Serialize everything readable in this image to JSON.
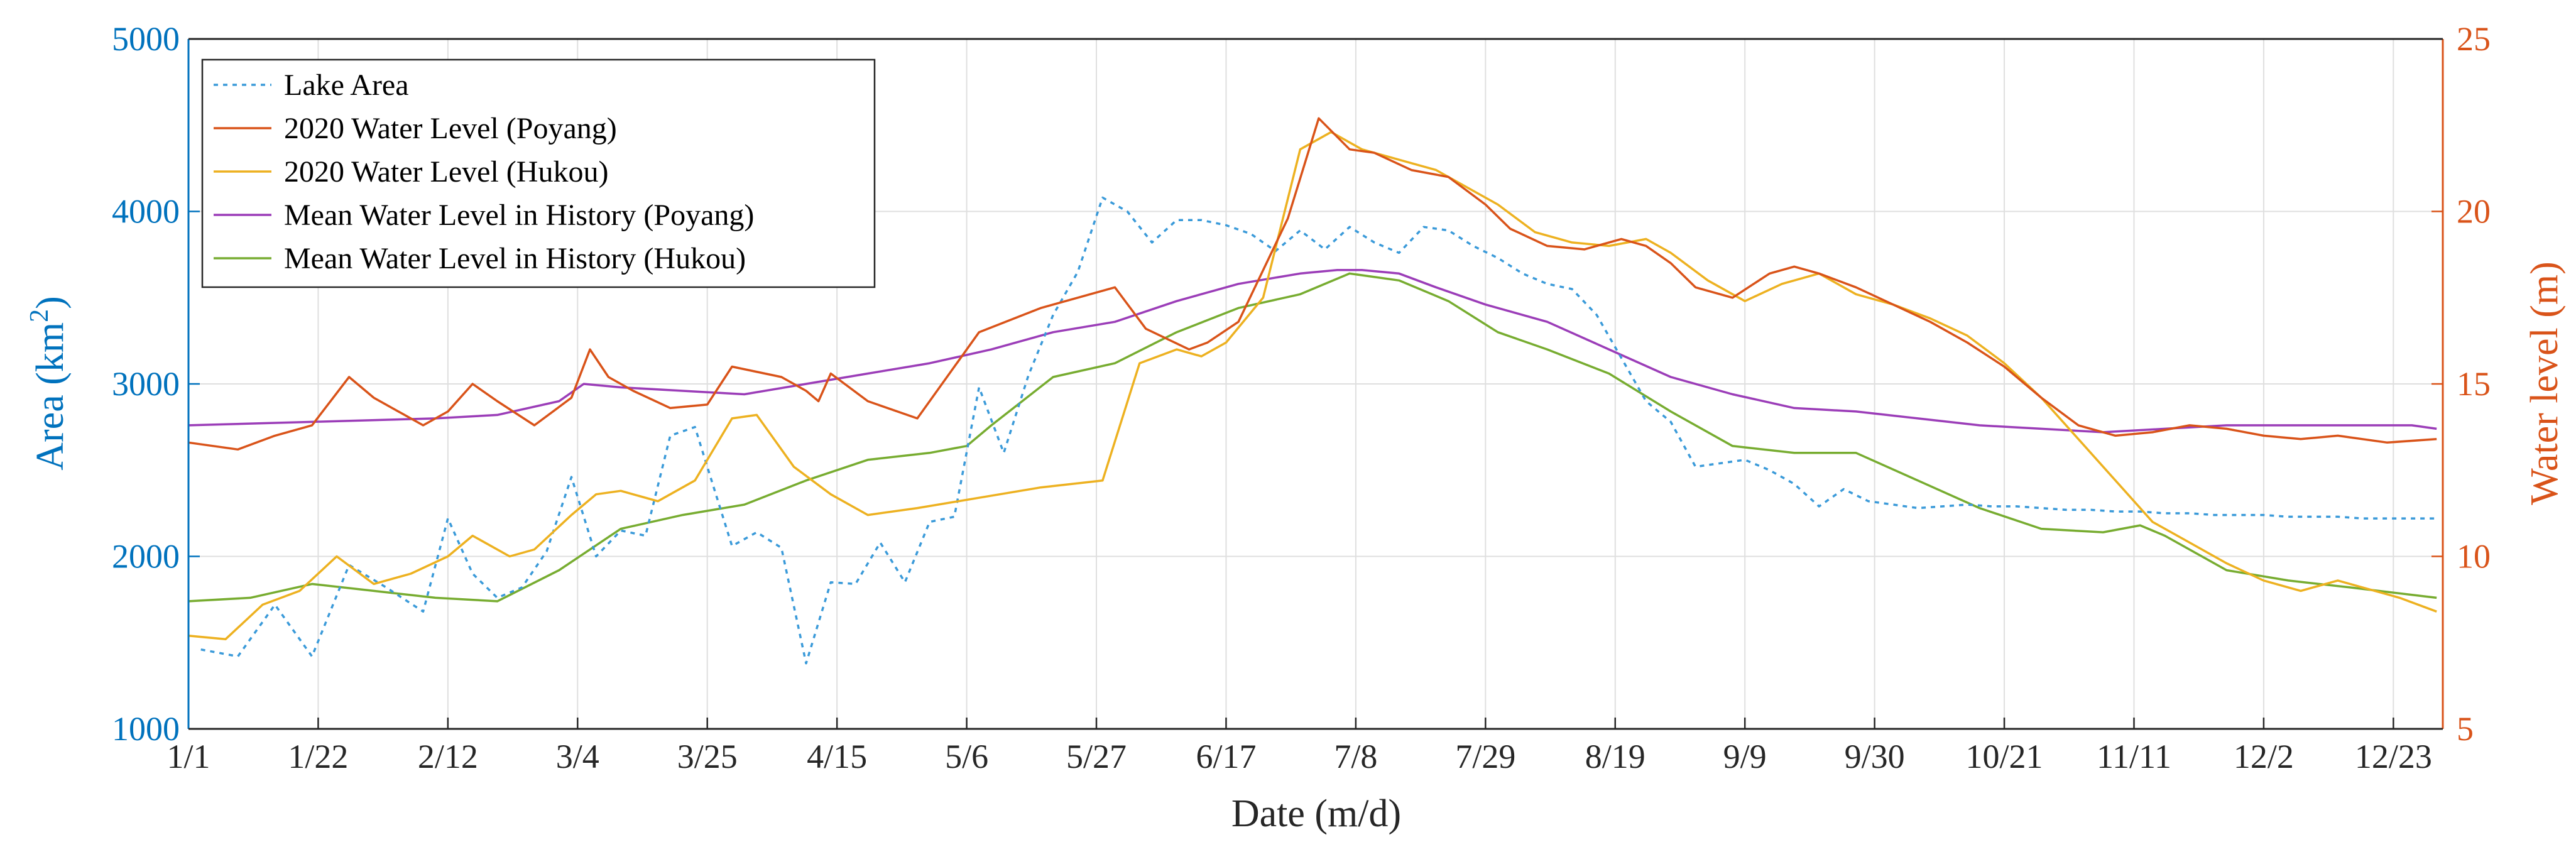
{
  "chart_data": {
    "type": "line",
    "xlabel": "Date (m/d)",
    "ylabel_left_main": "Area (km",
    "ylabel_left_sup": "2",
    "ylabel_left_end": ")",
    "ylabel_right": "Water level (m)",
    "x_tick_labels": [
      "1/1",
      "1/22",
      "2/12",
      "3/4",
      "3/25",
      "4/15",
      "5/6",
      "5/27",
      "6/17",
      "7/8",
      "7/29",
      "8/19",
      "9/9",
      "9/30",
      "10/21",
      "11/11",
      "12/2",
      "12/23"
    ],
    "x_tick_days": [
      0,
      21,
      42,
      63,
      84,
      105,
      126,
      147,
      168,
      189,
      210,
      231,
      252,
      273,
      294,
      315,
      336,
      357
    ],
    "xlim_days": [
      0,
      365
    ],
    "y_left_ticks": [
      1000,
      2000,
      3000,
      4000,
      5000
    ],
    "ylim_left": [
      1000,
      5000
    ],
    "y_right_ticks": [
      5,
      10,
      15,
      20,
      25
    ],
    "ylim_right": [
      5,
      25
    ],
    "grid": true,
    "legend_position": "top-left",
    "colors": {
      "left_axis": "#0072BD",
      "right_axis": "#D95319",
      "lake_area": "#3A9AD9",
      "poyang_2020": "#D95319",
      "hukou_2020": "#EDB120",
      "poyang_mean": "#9B3DB8",
      "hukou_mean": "#77AC30"
    },
    "series": [
      {
        "name": "Lake Area",
        "axis": "left",
        "style": "dotted",
        "color_key": "lake_area",
        "x": [
          2,
          8,
          14,
          20,
          26,
          32,
          38,
          42,
          46,
          50,
          54,
          58,
          62,
          66,
          70,
          74,
          78,
          82,
          84,
          88,
          92,
          96,
          100,
          104,
          108,
          112,
          116,
          120,
          124,
          128,
          132,
          136,
          140,
          144,
          148,
          152,
          156,
          160,
          164,
          168,
          172,
          176,
          180,
          184,
          188,
          192,
          196,
          200,
          204,
          208,
          212,
          216,
          220,
          224,
          228,
          232,
          236,
          240,
          244,
          248,
          252,
          256,
          260,
          264,
          268,
          272,
          276,
          280,
          284,
          288,
          292,
          296,
          300,
          304,
          308,
          312,
          316,
          320,
          324,
          328,
          332,
          336,
          340,
          344,
          348,
          352,
          356,
          360,
          364
        ],
        "y": [
          1460,
          1420,
          1720,
          1420,
          1950,
          1820,
          1680,
          2220,
          1900,
          1760,
          1820,
          2030,
          2460,
          2000,
          2150,
          2120,
          2700,
          2750,
          2520,
          2060,
          2140,
          2050,
          1380,
          1850,
          1840,
          2080,
          1850,
          2200,
          2230,
          2980,
          2600,
          3050,
          3400,
          3650,
          4080,
          4000,
          3820,
          3950,
          3950,
          3920,
          3870,
          3770,
          3890,
          3780,
          3910,
          3820,
          3760,
          3910,
          3890,
          3800,
          3730,
          3640,
          3580,
          3550,
          3400,
          3150,
          2900,
          2780,
          2520,
          2540,
          2560,
          2500,
          2420,
          2290,
          2390,
          2320,
          2300,
          2280,
          2290,
          2300,
          2290,
          2290,
          2280,
          2270,
          2270,
          2260,
          2260,
          2250,
          2250,
          2240,
          2240,
          2240,
          2230,
          2230,
          2230,
          2220,
          2220,
          2220,
          2220
        ]
      },
      {
        "name": "2020 Water Level (Poyang)",
        "axis": "right",
        "style": "solid",
        "color_key": "poyang_2020",
        "x": [
          0,
          8,
          14,
          20,
          26,
          30,
          38,
          42,
          46,
          50,
          56,
          62,
          65,
          68,
          72,
          78,
          84,
          88,
          96,
          100,
          102,
          104,
          110,
          118,
          128,
          138,
          150,
          155,
          162,
          165,
          170,
          178,
          183,
          188,
          192,
          198,
          204,
          210,
          214,
          220,
          226,
          232,
          236,
          240,
          244,
          250,
          256,
          260,
          264,
          270,
          276,
          282,
          288,
          294,
          300,
          306,
          312,
          318,
          324,
          330,
          336,
          342,
          348,
          356,
          364
        ],
        "y": [
          13.3,
          13.1,
          13.5,
          13.8,
          15.2,
          14.6,
          13.8,
          14.2,
          15.0,
          14.5,
          13.8,
          14.6,
          16.0,
          15.2,
          14.8,
          14.3,
          14.4,
          15.5,
          15.2,
          14.8,
          14.5,
          15.3,
          14.5,
          14.0,
          16.5,
          17.2,
          17.8,
          16.6,
          16.0,
          16.2,
          16.8,
          19.8,
          22.7,
          21.8,
          21.7,
          21.2,
          21.0,
          20.2,
          19.5,
          19.0,
          18.9,
          19.2,
          19.0,
          18.5,
          17.8,
          17.5,
          18.2,
          18.4,
          18.2,
          17.8,
          17.3,
          16.8,
          16.2,
          15.5,
          14.6,
          13.8,
          13.5,
          13.6,
          13.8,
          13.7,
          13.5,
          13.4,
          13.5,
          13.3,
          13.4
        ]
      },
      {
        "name": "2020 Water Level (Hukou)",
        "axis": "right",
        "style": "solid",
        "color_key": "hukou_2020",
        "x": [
          0,
          6,
          12,
          18,
          24,
          30,
          36,
          42,
          46,
          52,
          56,
          62,
          66,
          70,
          76,
          82,
          88,
          92,
          98,
          104,
          110,
          118,
          128,
          138,
          148,
          154,
          160,
          164,
          168,
          174,
          180,
          185,
          190,
          196,
          202,
          208,
          212,
          218,
          224,
          230,
          236,
          240,
          246,
          252,
          258,
          264,
          270,
          276,
          282,
          288,
          294,
          300,
          306,
          312,
          318,
          324,
          330,
          336,
          342,
          348,
          354,
          358,
          364
        ],
        "y": [
          7.7,
          7.6,
          8.6,
          9.0,
          10.0,
          9.2,
          9.5,
          10.0,
          10.6,
          10.0,
          10.2,
          11.2,
          11.8,
          11.9,
          11.6,
          12.2,
          14.0,
          14.1,
          12.6,
          11.8,
          11.2,
          11.4,
          11.7,
          12.0,
          12.2,
          15.6,
          16.0,
          15.8,
          16.2,
          17.5,
          21.8,
          22.3,
          21.8,
          21.5,
          21.2,
          20.6,
          20.2,
          19.4,
          19.1,
          19.0,
          19.2,
          18.8,
          18.0,
          17.4,
          17.9,
          18.2,
          17.6,
          17.3,
          16.9,
          16.4,
          15.6,
          14.6,
          13.4,
          12.2,
          11.0,
          10.4,
          9.8,
          9.3,
          9.0,
          9.3,
          9.0,
          8.8,
          8.4
        ]
      },
      {
        "name": "Mean Water Level in History (Poyang)",
        "axis": "right",
        "style": "solid",
        "color_key": "poyang_mean",
        "x": [
          0,
          20,
          40,
          50,
          60,
          64,
          70,
          80,
          90,
          100,
          110,
          120,
          130,
          140,
          150,
          160,
          170,
          180,
          186,
          190,
          196,
          202,
          210,
          220,
          230,
          240,
          250,
          260,
          270,
          280,
          290,
          300,
          310,
          320,
          330,
          340,
          350,
          360,
          364
        ],
        "y": [
          13.8,
          13.9,
          14.0,
          14.1,
          14.5,
          15.0,
          14.9,
          14.8,
          14.7,
          15.0,
          15.3,
          15.6,
          16.0,
          16.5,
          16.8,
          17.4,
          17.9,
          18.2,
          18.3,
          18.3,
          18.2,
          17.8,
          17.3,
          16.8,
          16.0,
          15.2,
          14.7,
          14.3,
          14.2,
          14.0,
          13.8,
          13.7,
          13.6,
          13.7,
          13.8,
          13.8,
          13.8,
          13.8,
          13.7
        ]
      },
      {
        "name": "Mean Water Level in History (Hukou)",
        "axis": "right",
        "style": "solid",
        "color_key": "hukou_mean",
        "x": [
          0,
          10,
          20,
          30,
          40,
          50,
          60,
          70,
          80,
          90,
          100,
          110,
          120,
          126,
          130,
          140,
          150,
          160,
          170,
          180,
          188,
          196,
          204,
          212,
          220,
          230,
          240,
          250,
          260,
          270,
          280,
          290,
          300,
          310,
          316,
          320,
          330,
          340,
          350,
          364
        ],
        "y": [
          8.7,
          8.8,
          9.2,
          9.0,
          8.8,
          8.7,
          9.6,
          10.8,
          11.2,
          11.5,
          12.2,
          12.8,
          13.0,
          13.2,
          13.8,
          15.2,
          15.6,
          16.5,
          17.2,
          17.6,
          18.2,
          18.0,
          17.4,
          16.5,
          16.0,
          15.3,
          14.2,
          13.2,
          13.0,
          13.0,
          12.2,
          11.4,
          10.8,
          10.7,
          10.9,
          10.6,
          9.6,
          9.3,
          9.1,
          8.8
        ]
      }
    ]
  }
}
